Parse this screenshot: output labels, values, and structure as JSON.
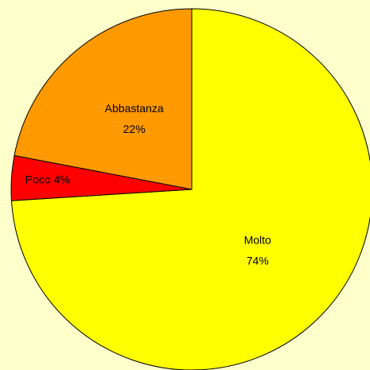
{
  "chart_data": {
    "type": "pie",
    "categories": [
      "Molto",
      "Poco",
      "Abbastanza"
    ],
    "values": [
      74,
      4,
      22
    ],
    "value_labels": [
      "74%",
      "4%",
      "22%"
    ],
    "colors": [
      "#ffff00",
      "#ff0000",
      "#ff9900"
    ]
  }
}
